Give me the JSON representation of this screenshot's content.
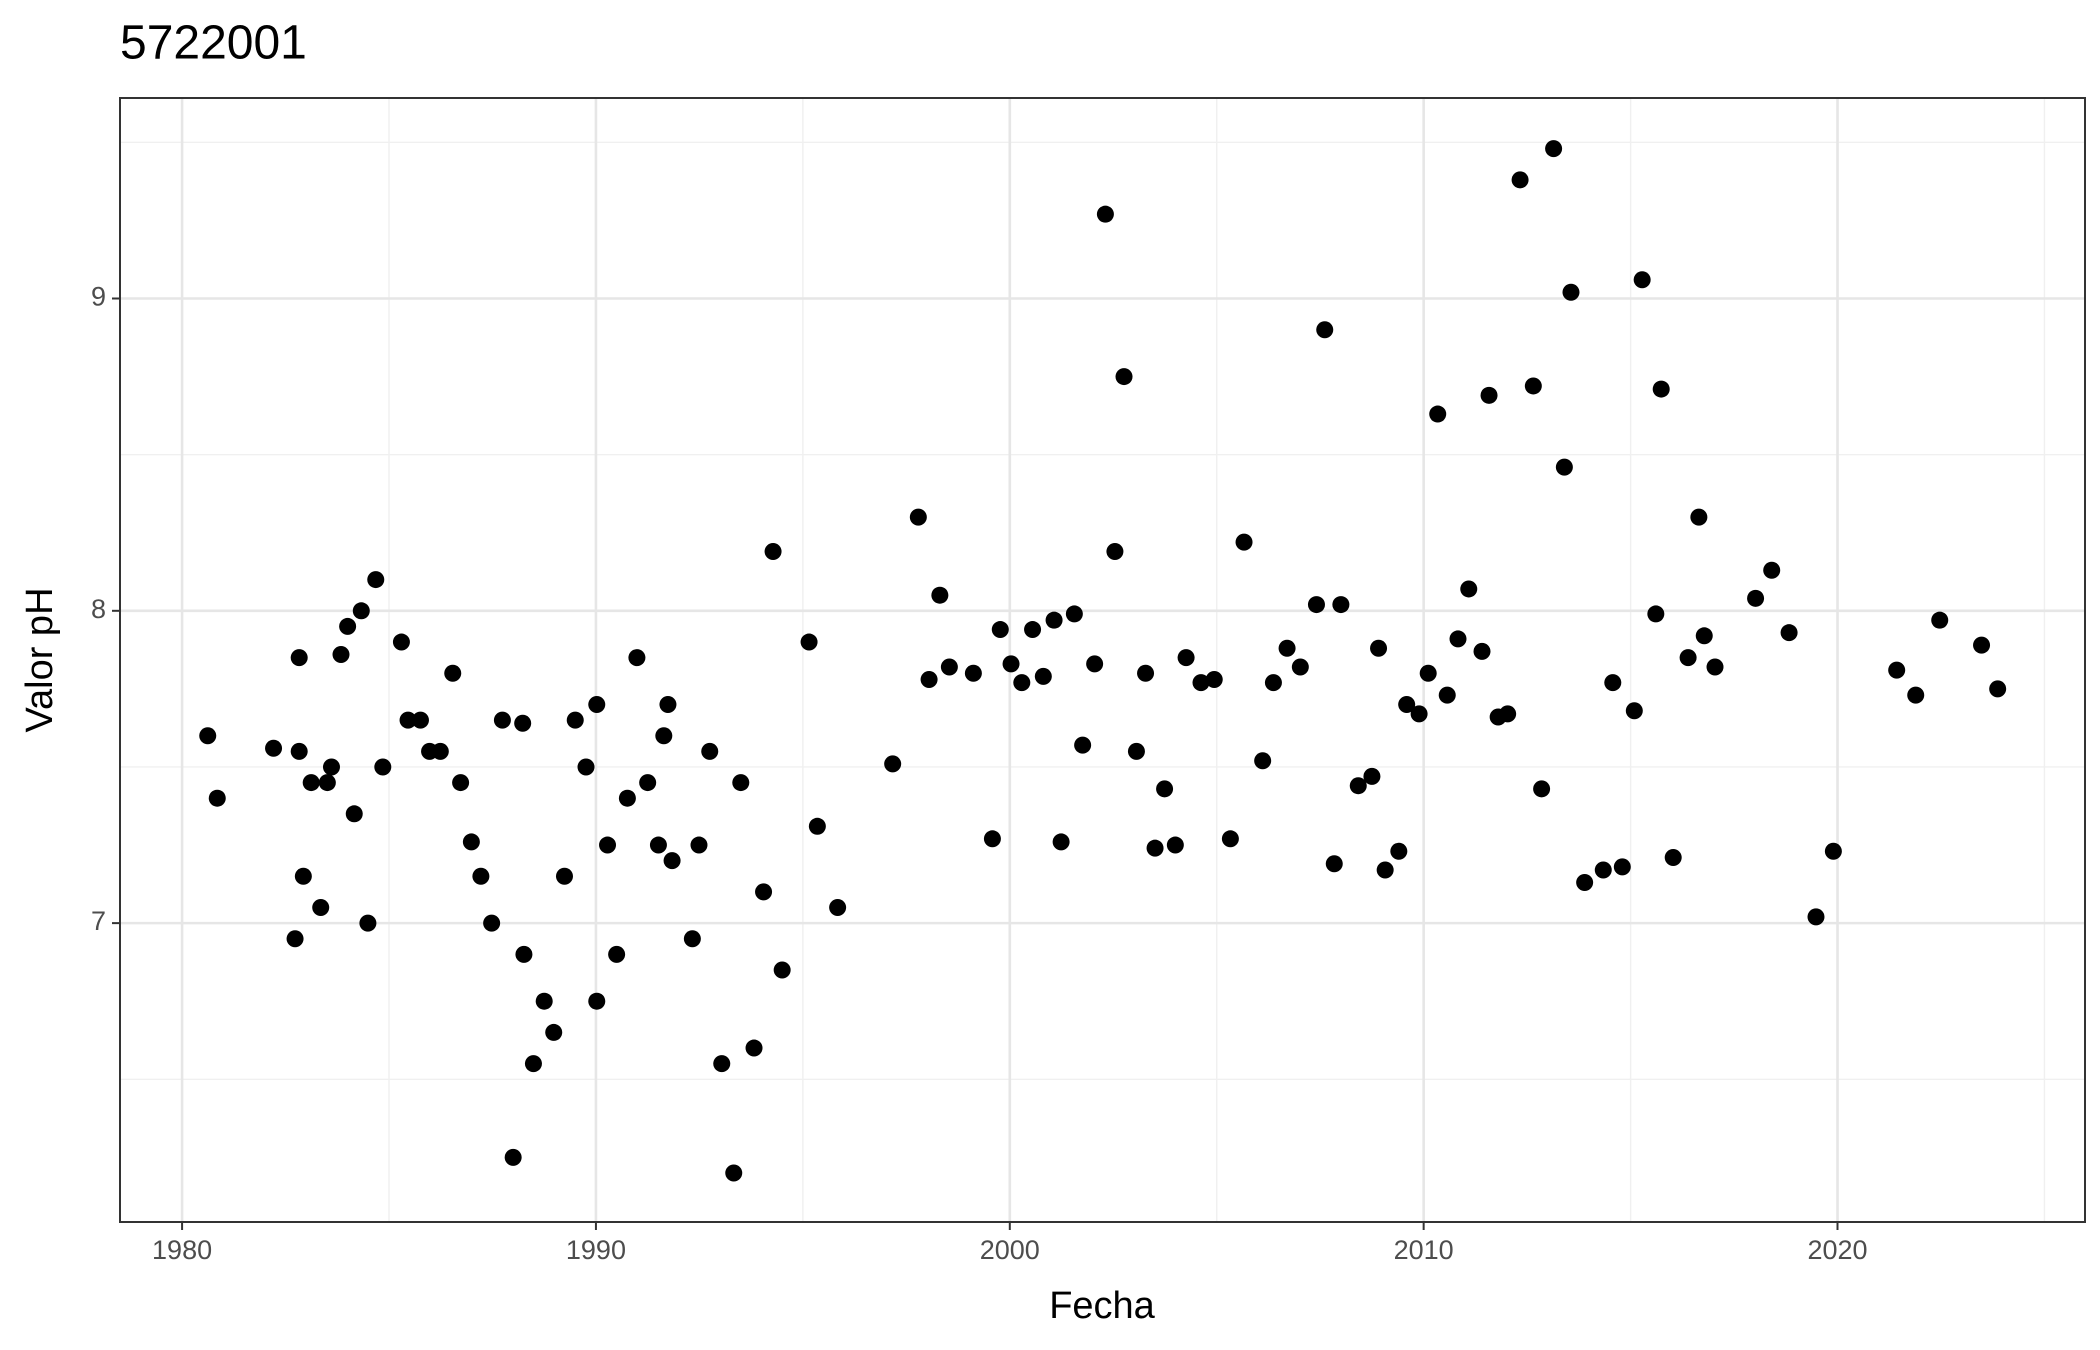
{
  "chart_data": {
    "type": "scatter",
    "title": "5722001",
    "x_label": "Fecha",
    "y_label": "Valor pH",
    "color": "#000000",
    "grid": true,
    "xlim": [
      1978.5,
      2025.98
    ],
    "ylim": [
      6.043,
      9.642
    ],
    "xticks": [
      1980,
      1990,
      2000,
      2010,
      2020
    ],
    "yticks": [
      7,
      8,
      9
    ],
    "x_minor_ticks": [
      1985,
      1995,
      2005,
      2015,
      2025
    ],
    "y_minor_ticks": [
      6.5,
      7.5,
      8.5,
      9.5
    ],
    "x": [
      1980.62,
      1980.85,
      1982.21,
      1982.73,
      1982.83,
      1982.83,
      1982.93,
      1983.12,
      1983.35,
      1983.51,
      1983.61,
      1983.84,
      1984.0,
      1984.16,
      1984.33,
      1984.49,
      1984.68,
      1984.85,
      1985.3,
      1985.46,
      1985.76,
      1985.98,
      1986.24,
      1986.54,
      1986.73,
      1986.99,
      1987.22,
      1987.48,
      1987.74,
      1988.0,
      1988.23,
      1988.26,
      1988.49,
      1988.75,
      1988.98,
      1989.24,
      1989.5,
      1989.76,
      1990.02,
      1990.02,
      1990.28,
      1990.5,
      1990.76,
      1990.99,
      1991.25,
      1991.51,
      1991.64,
      1991.74,
      1991.84,
      1992.33,
      1992.49,
      1992.75,
      1993.04,
      1993.33,
      1993.5,
      1993.82,
      1994.05,
      1994.28,
      1994.5,
      1995.15,
      1995.35,
      1995.84,
      1997.17,
      1997.79,
      1998.05,
      1998.31,
      1998.54,
      1999.12,
      1999.58,
      1999.77,
      2000.03,
      2000.29,
      2000.55,
      2000.81,
      2001.07,
      2001.24,
      2001.56,
      2001.76,
      2002.05,
      2002.31,
      2002.54,
      2002.76,
      2003.06,
      2003.28,
      2003.51,
      2003.74,
      2004.0,
      2004.26,
      2004.62,
      2004.94,
      2005.33,
      2005.66,
      2006.11,
      2006.37,
      2006.7,
      2007.02,
      2007.41,
      2007.61,
      2007.84,
      2008.0,
      2008.42,
      2008.75,
      2008.91,
      2009.07,
      2009.4,
      2009.59,
      2009.89,
      2010.11,
      2010.34,
      2010.57,
      2010.83,
      2011.09,
      2011.41,
      2011.58,
      2011.8,
      2012.03,
      2012.33,
      2012.65,
      2012.85,
      2013.14,
      2013.4,
      2013.56,
      2013.89,
      2014.34,
      2014.57,
      2014.8,
      2015.09,
      2015.28,
      2015.61,
      2015.74,
      2016.03,
      2016.39,
      2016.65,
      2016.78,
      2017.04,
      2018.02,
      2018.41,
      2018.83,
      2019.48,
      2019.9,
      2021.43,
      2021.89,
      2022.47,
      2023.48,
      2023.87
    ],
    "values": [
      7.6,
      7.4,
      7.56,
      6.95,
      7.85,
      7.55,
      7.15,
      7.45,
      7.05,
      7.45,
      7.5,
      7.86,
      7.95,
      7.35,
      8.0,
      7.0,
      8.1,
      7.5,
      7.9,
      7.65,
      7.65,
      7.55,
      7.55,
      7.8,
      7.45,
      7.26,
      7.15,
      7.0,
      7.65,
      6.25,
      7.64,
      6.9,
      6.55,
      6.75,
      6.65,
      7.15,
      7.65,
      7.5,
      7.7,
      6.75,
      7.25,
      6.9,
      7.4,
      7.85,
      7.45,
      7.25,
      7.6,
      7.7,
      7.2,
      6.95,
      7.25,
      7.55,
      6.55,
      6.2,
      7.45,
      6.6,
      7.1,
      8.19,
      6.85,
      7.9,
      7.31,
      7.05,
      7.51,
      8.3,
      7.78,
      8.05,
      7.82,
      7.8,
      7.27,
      7.94,
      7.83,
      7.77,
      7.94,
      7.79,
      7.97,
      7.26,
      7.99,
      7.57,
      7.83,
      9.27,
      8.19,
      8.75,
      7.55,
      7.8,
      7.24,
      7.43,
      7.25,
      7.85,
      7.77,
      7.78,
      7.27,
      8.22,
      7.52,
      7.77,
      7.88,
      7.82,
      8.02,
      8.9,
      7.19,
      8.02,
      7.44,
      7.47,
      7.88,
      7.17,
      7.23,
      7.7,
      7.67,
      7.8,
      8.63,
      7.73,
      7.91,
      8.07,
      7.87,
      8.69,
      7.66,
      7.67,
      9.38,
      8.72,
      7.43,
      9.48,
      8.46,
      9.02,
      7.13,
      7.17,
      7.77,
      7.18,
      7.68,
      9.06,
      7.99,
      8.71,
      7.21,
      7.85,
      8.3,
      7.92,
      7.82,
      8.04,
      8.13,
      7.93,
      7.02,
      7.23,
      7.81,
      7.73,
      7.97,
      7.89,
      7.75
    ]
  }
}
